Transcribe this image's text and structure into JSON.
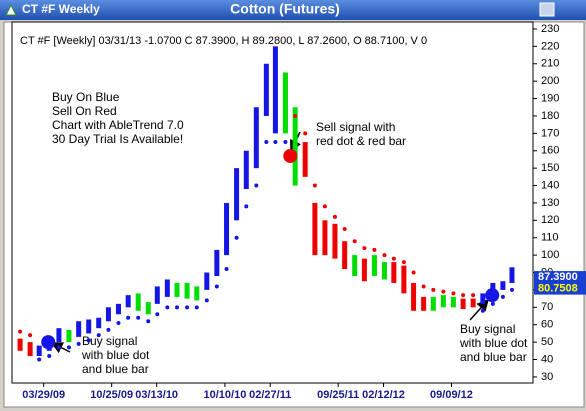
{
  "window_title": "CT #F Weekly",
  "chart_data": {
    "type": "bar",
    "title": "Cotton (Futures)",
    "subtitle": "CT #F [Weekly] 03/31/13  -1.0700 C 87.3900, H 89.2800, L 87.2600, O 88.7100, V 0",
    "x": [
      "01/15/09",
      "02/15/09",
      "03/15/09",
      "04/15/09",
      "05/15/09",
      "06/15/09",
      "07/15/09",
      "08/15/09",
      "09/15/09",
      "10/15/09",
      "11/15/09",
      "12/15/09",
      "01/15/10",
      "02/15/10",
      "03/15/10",
      "04/15/10",
      "05/15/10",
      "06/15/10",
      "07/15/10",
      "08/15/10",
      "09/15/10",
      "10/15/10",
      "11/15/10",
      "12/15/10",
      "01/15/11",
      "02/15/11",
      "03/15/11",
      "04/15/11",
      "05/15/11",
      "06/15/11",
      "07/15/11",
      "08/15/11",
      "09/15/11",
      "10/15/11",
      "11/15/11",
      "12/15/11",
      "01/15/12",
      "02/15/12",
      "03/15/12",
      "04/15/12",
      "05/15/12",
      "06/15/12",
      "07/15/12",
      "08/15/12",
      "09/15/12",
      "10/15/12",
      "11/15/12",
      "12/15/12",
      "01/15/13",
      "02/15/13",
      "03/15/13"
    ],
    "high": [
      52,
      50,
      48,
      53,
      58,
      57,
      62,
      63,
      64,
      70,
      72,
      77,
      78,
      73,
      82,
      86,
      84,
      84,
      82,
      90,
      103,
      130,
      150,
      160,
      185,
      210,
      220,
      205,
      185,
      165,
      130,
      120,
      118,
      108,
      100,
      98,
      100,
      96,
      96,
      94,
      84,
      76,
      76,
      77,
      76,
      75,
      75,
      78,
      84,
      85,
      93
    ],
    "low": [
      45,
      42,
      42,
      45,
      50,
      50,
      53,
      55,
      58,
      62,
      66,
      70,
      68,
      66,
      72,
      76,
      76,
      75,
      74,
      80,
      88,
      100,
      120,
      138,
      150,
      180,
      170,
      170,
      140,
      145,
      100,
      100,
      98,
      92,
      88,
      85,
      88,
      86,
      84,
      78,
      68,
      68,
      68,
      70,
      70,
      69,
      70,
      72,
      76,
      80,
      84
    ],
    "trend": [
      "red",
      "red",
      "blue",
      "blue",
      "blue",
      "green",
      "blue",
      "blue",
      "blue",
      "blue",
      "blue",
      "blue",
      "green",
      "green",
      "blue",
      "blue",
      "green",
      "green",
      "green",
      "blue",
      "blue",
      "blue",
      "blue",
      "blue",
      "blue",
      "blue",
      "blue",
      "green",
      "green",
      "red",
      "red",
      "red",
      "red",
      "red",
      "green",
      "red",
      "green",
      "green",
      "red",
      "red",
      "red",
      "red",
      "green",
      "green",
      "green",
      "red",
      "red",
      "blue",
      "blue",
      "blue",
      "blue"
    ],
    "stop": [
      56,
      54,
      40,
      42,
      47,
      47,
      49,
      51,
      54,
      57,
      61,
      64,
      64,
      62,
      66,
      70,
      70,
      70,
      70,
      74,
      82,
      92,
      110,
      128,
      140,
      165,
      165,
      165,
      180,
      170,
      140,
      128,
      122,
      115,
      108,
      104,
      103,
      100,
      98,
      96,
      90,
      82,
      80,
      79,
      78,
      77,
      77,
      68,
      72,
      76,
      80
    ],
    "stop_trend": [
      "red",
      "red",
      "blue",
      "blue",
      "blue",
      "blue",
      "blue",
      "blue",
      "blue",
      "blue",
      "blue",
      "blue",
      "blue",
      "blue",
      "blue",
      "blue",
      "blue",
      "blue",
      "blue",
      "blue",
      "blue",
      "blue",
      "blue",
      "blue",
      "blue",
      "blue",
      "blue",
      "blue",
      "red",
      "red",
      "red",
      "red",
      "red",
      "red",
      "red",
      "red",
      "red",
      "red",
      "red",
      "red",
      "red",
      "red",
      "red",
      "red",
      "red",
      "red",
      "red",
      "blue",
      "blue",
      "blue",
      "blue"
    ],
    "palette": {
      "blue": "#1515e6",
      "green": "#00dd00",
      "red": "#ee0000"
    },
    "signals": [
      {
        "x": "04/12/09",
        "y": 50,
        "trend": "blue"
      },
      {
        "x": "04/30/11",
        "y": 157,
        "trend": "red"
      },
      {
        "x": "01/13/13",
        "y": 77,
        "trend": "blue"
      }
    ],
    "xlim": [
      "12/21/08",
      "05/19/13"
    ],
    "xticks": [
      "03/29/09",
      "10/25/09",
      "03/13/10",
      "10/10/10",
      "02/27/11",
      "09/25/11",
      "02/12/12",
      "09/09/12"
    ],
    "ylim": [
      26.5,
      234
    ],
    "yticks": [
      30,
      40,
      50,
      60,
      70,
      80,
      90,
      100,
      110,
      120,
      130,
      140,
      150,
      160,
      170,
      180,
      190,
      200,
      210,
      220,
      230
    ],
    "price_labels": [
      {
        "value": 87.39,
        "label": "87.3900"
      },
      {
        "value": 80.7508,
        "label": "80.7508"
      }
    ],
    "annotations": {
      "legend_note": [
        "Buy On Blue",
        "Sell On Red",
        "Chart with AbleTrend 7.0",
        "30 Day Trial Is Available!"
      ],
      "sell_note": [
        "Sell signal with",
        "red dot & red bar"
      ],
      "buy_note_left": [
        "Buy signal",
        "with blue dot",
        "and blue bar"
      ],
      "buy_note_right": [
        "Buy signal",
        "with blue dot",
        "and blue bar"
      ]
    }
  }
}
